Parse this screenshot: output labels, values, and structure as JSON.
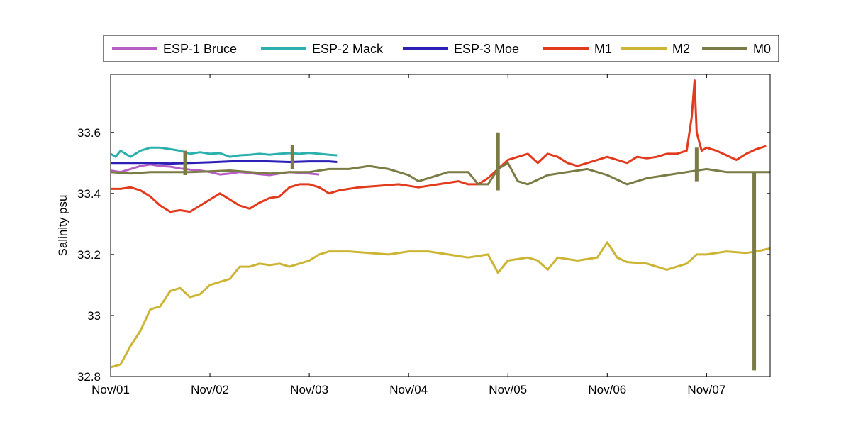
{
  "chart_data": {
    "type": "line",
    "title": "",
    "xlabel": "",
    "ylabel": "Salinity psu",
    "x_unit": "days",
    "xlim": [
      "Nov/01",
      "Nov/07 +0.64d"
    ],
    "ylim": [
      32.8,
      33.79
    ],
    "x_ticks": [
      "Nov/01",
      "Nov/02",
      "Nov/03",
      "Nov/04",
      "Nov/05",
      "Nov/06",
      "Nov/07"
    ],
    "y_ticks": [
      "32.8",
      "33",
      "33.2",
      "33.4",
      "33.6"
    ],
    "grid": false,
    "legend_position": "top, outside plot, single row",
    "series": [
      {
        "name": "ESP-1 Bruce",
        "color": "#b55fc4",
        "points": [
          [
            "Nov/01 00:00",
            33.475
          ],
          [
            "Nov/01 02:24",
            33.47
          ],
          [
            "Nov/01 04:48",
            33.48
          ],
          [
            "Nov/01 07:12",
            33.49
          ],
          [
            "Nov/01 09:36",
            33.495
          ],
          [
            "Nov/01 12:00",
            33.49
          ],
          [
            "Nov/01 14:24",
            33.488
          ],
          [
            "Nov/01 16:48",
            33.482
          ],
          [
            "Nov/01 19:12",
            33.478
          ],
          [
            "Nov/01 21:36",
            33.475
          ],
          [
            "Nov/02 00:00",
            33.47
          ],
          [
            "Nov/02 02:24",
            33.462
          ],
          [
            "Nov/02 04:48",
            33.465
          ],
          [
            "Nov/02 07:12",
            33.47
          ],
          [
            "Nov/02 09:36",
            33.467
          ],
          [
            "Nov/02 12:00",
            33.463
          ],
          [
            "Nov/02 14:24",
            33.46
          ],
          [
            "Nov/02 16:48",
            33.465
          ],
          [
            "Nov/02 19:12",
            33.47
          ],
          [
            "Nov/02 21:36",
            33.468
          ],
          [
            "Nov/03 00:00",
            33.465
          ],
          [
            "Nov/03 02:24",
            33.462
          ]
        ]
      },
      {
        "name": "ESP-2 Mack",
        "color": "#2bb0ad",
        "points": [
          [
            "Nov/01 00:00",
            33.53
          ],
          [
            "Nov/01 01:12",
            33.52
          ],
          [
            "Nov/01 02:24",
            33.54
          ],
          [
            "Nov/01 04:48",
            33.52
          ],
          [
            "Nov/01 07:12",
            33.54
          ],
          [
            "Nov/01 09:36",
            33.55
          ],
          [
            "Nov/01 12:00",
            33.55
          ],
          [
            "Nov/01 14:24",
            33.545
          ],
          [
            "Nov/01 16:48",
            33.54
          ],
          [
            "Nov/01 19:12",
            33.53
          ],
          [
            "Nov/01 21:36",
            33.535
          ],
          [
            "Nov/02 00:00",
            33.53
          ],
          [
            "Nov/02 02:24",
            33.532
          ],
          [
            "Nov/02 04:48",
            33.52
          ],
          [
            "Nov/02 07:12",
            33.525
          ],
          [
            "Nov/02 09:36",
            33.527
          ],
          [
            "Nov/02 12:00",
            33.53
          ],
          [
            "Nov/02 14:24",
            33.527
          ],
          [
            "Nov/02 16:48",
            33.53
          ],
          [
            "Nov/02 19:12",
            33.532
          ],
          [
            "Nov/02 21:36",
            33.53
          ],
          [
            "Nov/03 00:00",
            33.533
          ],
          [
            "Nov/03 02:24",
            33.53
          ],
          [
            "Nov/03 04:48",
            33.527
          ],
          [
            "Nov/03 06:43",
            33.525
          ]
        ]
      },
      {
        "name": "ESP-3 Moe",
        "color": "#2b1fb5",
        "points": [
          [
            "Nov/01 00:00",
            33.5
          ],
          [
            "Nov/01 04:48",
            33.5
          ],
          [
            "Nov/01 09:36",
            33.5
          ],
          [
            "Nov/01 14:24",
            33.498
          ],
          [
            "Nov/01 19:12",
            33.5
          ],
          [
            "Nov/02 00:00",
            33.502
          ],
          [
            "Nov/02 04:48",
            33.505
          ],
          [
            "Nov/02 09:36",
            33.507
          ],
          [
            "Nov/02 14:24",
            33.505
          ],
          [
            "Nov/02 19:12",
            33.503
          ],
          [
            "Nov/03 00:00",
            33.505
          ],
          [
            "Nov/03 04:48",
            33.505
          ],
          [
            "Nov/03 06:43",
            33.503
          ]
        ]
      },
      {
        "name": "M1",
        "color": "#e23a1c",
        "points": [
          [
            "Nov/01 00:00",
            33.415
          ],
          [
            "Nov/01 02:24",
            33.415
          ],
          [
            "Nov/01 04:48",
            33.42
          ],
          [
            "Nov/01 07:12",
            33.41
          ],
          [
            "Nov/01 09:36",
            33.39
          ],
          [
            "Nov/01 12:00",
            33.36
          ],
          [
            "Nov/01 14:24",
            33.34
          ],
          [
            "Nov/01 16:48",
            33.345
          ],
          [
            "Nov/01 19:12",
            33.34
          ],
          [
            "Nov/01 21:36",
            33.36
          ],
          [
            "Nov/02 00:00",
            33.38
          ],
          [
            "Nov/02 02:24",
            33.4
          ],
          [
            "Nov/02 04:48",
            33.38
          ],
          [
            "Nov/02 07:12",
            33.36
          ],
          [
            "Nov/02 09:36",
            33.35
          ],
          [
            "Nov/02 12:00",
            33.37
          ],
          [
            "Nov/02 14:24",
            33.385
          ],
          [
            "Nov/02 16:48",
            33.39
          ],
          [
            "Nov/02 19:12",
            33.42
          ],
          [
            "Nov/02 21:36",
            33.43
          ],
          [
            "Nov/03 00:00",
            33.43
          ],
          [
            "Nov/03 02:24",
            33.42
          ],
          [
            "Nov/03 04:48",
            33.4
          ],
          [
            "Nov/03 07:12",
            33.41
          ],
          [
            "Nov/03 12:00",
            33.42
          ],
          [
            "Nov/03 16:48",
            33.425
          ],
          [
            "Nov/03 21:36",
            33.43
          ],
          [
            "Nov/04 02:24",
            33.42
          ],
          [
            "Nov/04 07:12",
            33.43
          ],
          [
            "Nov/04 12:00",
            33.44
          ],
          [
            "Nov/04 14:24",
            33.43
          ],
          [
            "Nov/04 16:48",
            33.43
          ],
          [
            "Nov/04 19:12",
            33.45
          ],
          [
            "Nov/04 21:36",
            33.48
          ],
          [
            "Nov/05 00:00",
            33.51
          ],
          [
            "Nov/05 02:24",
            33.52
          ],
          [
            "Nov/05 04:48",
            33.53
          ],
          [
            "Nov/05 07:12",
            33.5
          ],
          [
            "Nov/05 09:36",
            33.53
          ],
          [
            "Nov/05 12:00",
            33.52
          ],
          [
            "Nov/05 14:24",
            33.5
          ],
          [
            "Nov/05 16:48",
            33.49
          ],
          [
            "Nov/05 19:12",
            33.5
          ],
          [
            "Nov/05 21:36",
            33.51
          ],
          [
            "Nov/06 00:00",
            33.52
          ],
          [
            "Nov/06 02:24",
            33.51
          ],
          [
            "Nov/06 04:48",
            33.5
          ],
          [
            "Nov/06 07:12",
            33.52
          ],
          [
            "Nov/06 09:36",
            33.515
          ],
          [
            "Nov/06 12:00",
            33.52
          ],
          [
            "Nov/06 14:24",
            33.53
          ],
          [
            "Nov/06 16:48",
            33.53
          ],
          [
            "Nov/06 19:12",
            33.54
          ],
          [
            "Nov/06 20:24",
            33.65
          ],
          [
            "Nov/06 21:06",
            33.77
          ],
          [
            "Nov/06 21:36",
            33.6
          ],
          [
            "Nov/06 22:48",
            33.54
          ],
          [
            "Nov/07 00:00",
            33.55
          ],
          [
            "Nov/07 02:24",
            33.54
          ],
          [
            "Nov/07 04:48",
            33.525
          ],
          [
            "Nov/07 07:12",
            33.51
          ],
          [
            "Nov/07 09:36",
            33.53
          ],
          [
            "Nov/07 12:00",
            33.545
          ],
          [
            "Nov/07 14:24",
            33.555
          ]
        ]
      },
      {
        "name": "M2",
        "color": "#ccb434",
        "points": [
          [
            "Nov/01 00:00",
            32.83
          ],
          [
            "Nov/01 02:24",
            32.84
          ],
          [
            "Nov/01 04:48",
            32.9
          ],
          [
            "Nov/01 07:12",
            32.95
          ],
          [
            "Nov/01 09:36",
            33.02
          ],
          [
            "Nov/01 12:00",
            33.03
          ],
          [
            "Nov/01 14:24",
            33.08
          ],
          [
            "Nov/01 16:48",
            33.09
          ],
          [
            "Nov/01 19:12",
            33.06
          ],
          [
            "Nov/01 21:36",
            33.07
          ],
          [
            "Nov/02 00:00",
            33.1
          ],
          [
            "Nov/02 02:24",
            33.11
          ],
          [
            "Nov/02 04:48",
            33.12
          ],
          [
            "Nov/02 07:12",
            33.16
          ],
          [
            "Nov/02 09:36",
            33.16
          ],
          [
            "Nov/02 12:00",
            33.17
          ],
          [
            "Nov/02 14:24",
            33.165
          ],
          [
            "Nov/02 16:48",
            33.17
          ],
          [
            "Nov/02 19:12",
            33.16
          ],
          [
            "Nov/02 21:36",
            33.17
          ],
          [
            "Nov/03 00:00",
            33.18
          ],
          [
            "Nov/03 02:24",
            33.2
          ],
          [
            "Nov/03 04:48",
            33.21
          ],
          [
            "Nov/03 09:36",
            33.21
          ],
          [
            "Nov/03 14:24",
            33.205
          ],
          [
            "Nov/03 19:12",
            33.2
          ],
          [
            "Nov/04 00:00",
            33.21
          ],
          [
            "Nov/04 04:48",
            33.21
          ],
          [
            "Nov/04 09:36",
            33.2
          ],
          [
            "Nov/04 14:24",
            33.19
          ],
          [
            "Nov/04 19:12",
            33.2
          ],
          [
            "Nov/04 21:36",
            33.14
          ],
          [
            "Nov/05 00:00",
            33.18
          ],
          [
            "Nov/05 04:48",
            33.19
          ],
          [
            "Nov/05 07:12",
            33.18
          ],
          [
            "Nov/05 09:36",
            33.15
          ],
          [
            "Nov/05 12:00",
            33.19
          ],
          [
            "Nov/05 16:48",
            33.18
          ],
          [
            "Nov/05 21:36",
            33.19
          ],
          [
            "Nov/06 00:00",
            33.24
          ],
          [
            "Nov/06 02:24",
            33.19
          ],
          [
            "Nov/06 04:48",
            33.175
          ],
          [
            "Nov/06 09:36",
            33.17
          ],
          [
            "Nov/06 14:24",
            33.15
          ],
          [
            "Nov/06 19:12",
            33.17
          ],
          [
            "Nov/06 21:36",
            33.2
          ],
          [
            "Nov/07 00:00",
            33.2
          ],
          [
            "Nov/07 04:48",
            33.21
          ],
          [
            "Nov/07 09:36",
            33.205
          ],
          [
            "Nov/07 12:00",
            33.21
          ],
          [
            "Nov/07 15:22",
            33.22
          ]
        ]
      },
      {
        "name": "M0",
        "color": "#7b7b45",
        "points": [
          [
            "Nov/01 00:00",
            33.47
          ],
          [
            "Nov/01 04:48",
            33.465
          ],
          [
            "Nov/01 09:36",
            33.47
          ],
          [
            "Nov/01 14:24",
            33.47
          ],
          [
            "Nov/01 19:12",
            33.47
          ],
          [
            "Nov/02 00:00",
            33.472
          ],
          [
            "Nov/02 04:48",
            33.475
          ],
          [
            "Nov/02 09:36",
            33.47
          ],
          [
            "Nov/02 14:24",
            33.465
          ],
          [
            "Nov/02 19:12",
            33.47
          ],
          [
            "Nov/03 00:00",
            33.47
          ],
          [
            "Nov/03 04:48",
            33.48
          ],
          [
            "Nov/03 09:36",
            33.48
          ],
          [
            "Nov/03 14:24",
            33.49
          ],
          [
            "Nov/03 19:12",
            33.48
          ],
          [
            "Nov/04 00:00",
            33.46
          ],
          [
            "Nov/04 02:24",
            33.44
          ],
          [
            "Nov/04 04:48",
            33.45
          ],
          [
            "Nov/04 09:36",
            33.47
          ],
          [
            "Nov/04 14:24",
            33.47
          ],
          [
            "Nov/04 16:48",
            33.43
          ],
          [
            "Nov/04 19:12",
            33.43
          ],
          [
            "Nov/04 21:36",
            33.48
          ],
          [
            "Nov/05 00:00",
            33.5
          ],
          [
            "Nov/05 02:24",
            33.44
          ],
          [
            "Nov/05 04:48",
            33.43
          ],
          [
            "Nov/05 09:36",
            33.46
          ],
          [
            "Nov/05 14:24",
            33.47
          ],
          [
            "Nov/05 19:12",
            33.48
          ],
          [
            "Nov/06 00:00",
            33.46
          ],
          [
            "Nov/06 04:48",
            33.43
          ],
          [
            "Nov/06 09:36",
            33.45
          ],
          [
            "Nov/06 14:24",
            33.46
          ],
          [
            "Nov/06 19:12",
            33.47
          ],
          [
            "Nov/07 00:00",
            33.48
          ],
          [
            "Nov/07 04:48",
            33.47
          ],
          [
            "Nov/07 09:36",
            33.47
          ],
          [
            "Nov/07 14:24",
            33.47
          ],
          [
            "Nov/07 15:22",
            33.47
          ]
        ]
      }
    ],
    "spikes": [
      {
        "series": "M0",
        "x": "Nov/01 18:00",
        "y_range": [
          33.46,
          33.54
        ]
      },
      {
        "series": "M0",
        "x": "Nov/02 19:55",
        "y_range": [
          33.48,
          33.56
        ]
      },
      {
        "series": "M0",
        "x": "Nov/04 21:36",
        "y_range": [
          33.41,
          33.6
        ]
      },
      {
        "series": "M0",
        "x": "Nov/06 21:36",
        "y_range": [
          33.44,
          33.55
        ]
      },
      {
        "series": "M0",
        "x": "Nov/07 11:31",
        "y_range": [
          32.82,
          33.47
        ]
      }
    ]
  }
}
